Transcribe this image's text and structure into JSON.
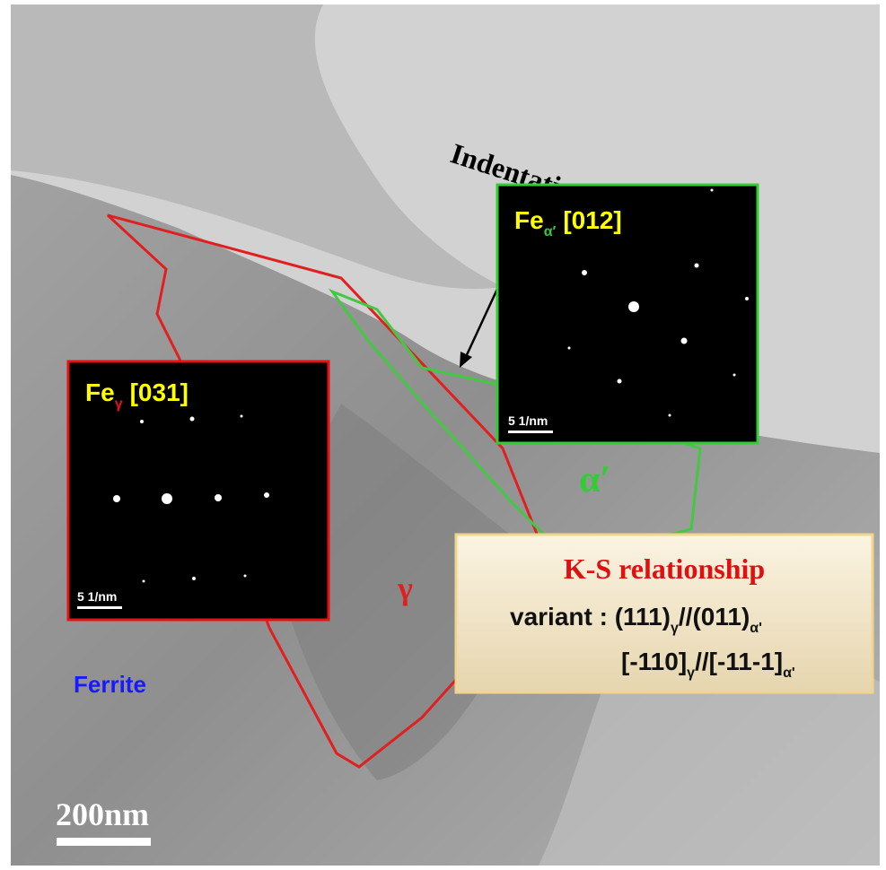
{
  "labels": {
    "indentation": "Indentation",
    "ferrite": "Ferrite",
    "gamma": "γ",
    "alpha_prime": "α′",
    "scale_bar": "200nm"
  },
  "insets": [
    {
      "element": "Fe",
      "phase": "γ",
      "zone_axis": "[031]",
      "scale": "5 1/nm"
    },
    {
      "element": "Fe",
      "phase": "α′",
      "zone_axis": "[012]",
      "scale": "5 1/nm"
    }
  ],
  "ks_box": {
    "title": "K-S relationship",
    "line1": [
      "variant : (111)",
      "γ",
      "//(011)",
      "α'"
    ],
    "line2": [
      "[-110]",
      "γ",
      "//[-11-1]",
      "α'"
    ]
  }
}
